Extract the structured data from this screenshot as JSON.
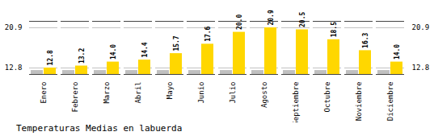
{
  "chart_data": {
    "type": "bar",
    "title": "Temperaturas Medias en labuerda",
    "categories": [
      "Enero",
      "Febrero",
      "Marzo",
      "Abril",
      "Mayo",
      "Junio",
      "Julio",
      "Agosto",
      "Septiembre",
      "Octubre",
      "Noviembre",
      "Diciembre"
    ],
    "series": [
      {
        "color": "#C0C0C0",
        "values": [
          12.3,
          12.3,
          12.3,
          12.3,
          12.3,
          12.3,
          12.3,
          12.3,
          12.3,
          12.3,
          12.3,
          12.3
        ]
      },
      {
        "color": "#FFD700",
        "values": [
          12.8,
          13.2,
          14.0,
          14.4,
          15.7,
          17.6,
          20.0,
          20.9,
          20.5,
          18.5,
          16.3,
          14.0
        ],
        "value_labels": [
          "12.8",
          "13.2",
          "14.0",
          "14.4",
          "15.7",
          "17.6",
          "20.0",
          "20.9",
          "20.5",
          "18.5",
          "16.3",
          "14.0"
        ],
        "data_labels": true
      }
    ],
    "ylim": [
      11.5,
      22.2
    ],
    "yticks": [
      12.8,
      20.9
    ],
    "y2lim": [
      11.5,
      22.2
    ],
    "y2ticks": [
      12.8,
      20.9
    ],
    "grid": true
  }
}
